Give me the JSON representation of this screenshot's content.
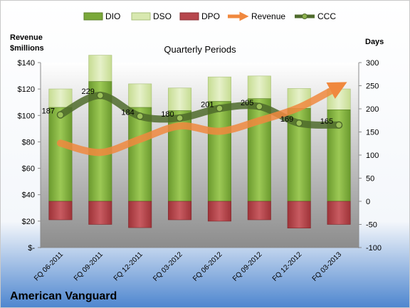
{
  "chart_data": {
    "type": "bar",
    "title": "Quarterly Periods",
    "company": "American Vanguard",
    "left_axis_label": [
      "Revenue",
      "$millions"
    ],
    "right_axis_label": "Days",
    "categories": [
      "FQ 06-2011",
      "FQ 09-2011",
      "FQ 12-2011",
      "FQ 03-2012",
      "FQ 06-2012",
      "FQ 09-2012",
      "FQ 12-2012",
      "FQ 03-2013"
    ],
    "left_ticks": [
      "$140",
      "$120",
      "$100",
      "$80",
      "$60",
      "$40",
      "$20",
      "$-"
    ],
    "right_ticks": [
      "300",
      "250",
      "200",
      "150",
      "100",
      "50",
      "0",
      "-50",
      "-100"
    ],
    "left_ylim": [
      0,
      140
    ],
    "right_ylim": [
      -100,
      300
    ],
    "legend_position": "top",
    "series": [
      {
        "name": "DIO",
        "color": "#7aa83a",
        "values": [
          203,
          259,
          203,
          196,
          216,
          222,
          201,
          198
        ]
      },
      {
        "name": "DSO",
        "color": "#d8e8b0",
        "values": [
          40,
          57,
          51,
          49,
          53,
          49,
          43,
          45
        ]
      },
      {
        "name": "DPO",
        "color": "#b7474d",
        "values": [
          -40,
          -50,
          -57,
          -40,
          -43,
          -40,
          -58,
          -50
        ]
      },
      {
        "name": "Revenue",
        "color": "#f0883e",
        "values": [
          79,
          72,
          82,
          92,
          88,
          96,
          106,
          122
        ]
      },
      {
        "name": "CCC",
        "color": "#4f6b2c",
        "values": [
          187,
          229,
          184,
          180,
          201,
          205,
          169,
          165
        ]
      }
    ],
    "ccc_labels": [
      "187",
      "229",
      "184",
      "180",
      "201",
      "205",
      "169",
      "165"
    ]
  }
}
